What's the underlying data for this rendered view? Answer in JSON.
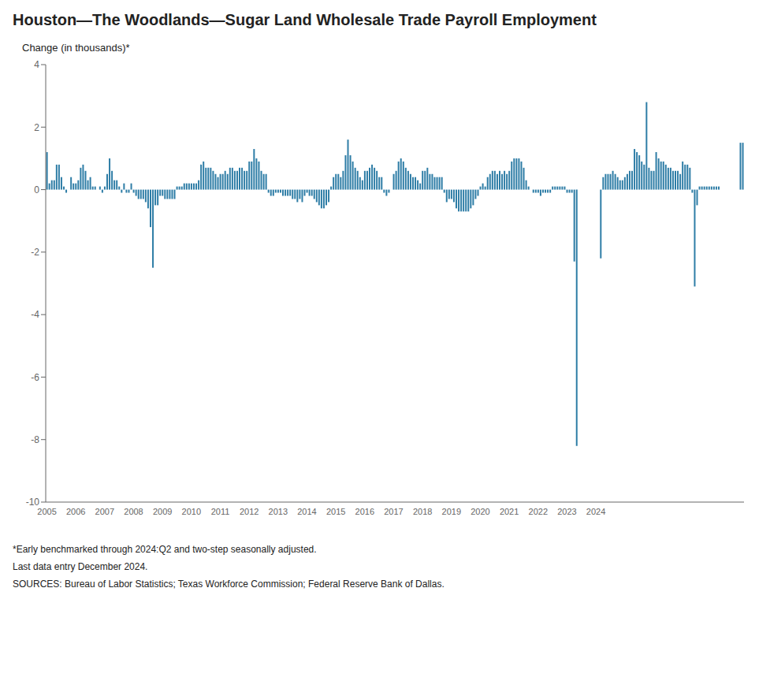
{
  "chart_data": {
    "type": "bar",
    "title": "Houston—The Woodlands—Sugar Land Wholesale Trade Payroll Employment",
    "ylabel": "Change (in thousands)*",
    "annotations": [
      "*Early benchmarked through 2024:Q2  and two-step seasonally adjusted.",
      "Last data entry December 2024.",
      "SOURCES:  Bureau of Labor Statistics;  Texas Workforce Commission;  Federal Reserve Bank of Dallas."
    ],
    "color": "#2e7da6",
    "ylim": [
      -10,
      4
    ],
    "yticks": [
      -10,
      -8,
      -6,
      -4,
      -2,
      0,
      2,
      4
    ],
    "grid": false,
    "categories": [
      "2005",
      null,
      null,
      null,
      null,
      null,
      null,
      null,
      null,
      null,
      null,
      null,
      "2006",
      null,
      null,
      null,
      null,
      null,
      null,
      null,
      null,
      null,
      null,
      null,
      "2007",
      null,
      null,
      null,
      null,
      null,
      null,
      null,
      null,
      null,
      null,
      null,
      "2008",
      null,
      null,
      null,
      null,
      null,
      null,
      null,
      null,
      null,
      null,
      null,
      "2009",
      null,
      null,
      null,
      null,
      null,
      null,
      null,
      null,
      null,
      null,
      null,
      "2010",
      null,
      null,
      null,
      null,
      null,
      null,
      null,
      null,
      null,
      null,
      null,
      "2011",
      null,
      null,
      null,
      null,
      null,
      null,
      null,
      null,
      null,
      null,
      null,
      "2012",
      null,
      null,
      null,
      null,
      null,
      null,
      null,
      null,
      null,
      null,
      null,
      "2013",
      null,
      null,
      null,
      null,
      null,
      null,
      null,
      null,
      null,
      null,
      null,
      "2014",
      null,
      null,
      null,
      null,
      null,
      null,
      null,
      null,
      null,
      null,
      null,
      "2015",
      null,
      null,
      null,
      null,
      null,
      null,
      null,
      null,
      null,
      null,
      null,
      "2016",
      null,
      null,
      null,
      null,
      null,
      null,
      null,
      null,
      null,
      null,
      null,
      "2017",
      null,
      null,
      null,
      null,
      null,
      null,
      null,
      null,
      null,
      null,
      null,
      "2018",
      null,
      null,
      null,
      null,
      null,
      null,
      null,
      null,
      null,
      null,
      null,
      "2019",
      null,
      null,
      null,
      null,
      null,
      null,
      null,
      null,
      null,
      null,
      null,
      "2020",
      null,
      null,
      null,
      null,
      null,
      null,
      null,
      null,
      null,
      null,
      null,
      "2021",
      null,
      null,
      null,
      null,
      null,
      null,
      null,
      null,
      null,
      null,
      null,
      "2022",
      null,
      null,
      null,
      null,
      null,
      null,
      null,
      null,
      null,
      null,
      null,
      "2023",
      null,
      null,
      null,
      null,
      null,
      null,
      null,
      null,
      null,
      null,
      null,
      "2024",
      null,
      null,
      null,
      null,
      null,
      null,
      null,
      null,
      null,
      null,
      null,
      null,
      null,
      null,
      null,
      null,
      null,
      null,
      null,
      null,
      null,
      null,
      null,
      null,
      null,
      null,
      null,
      null,
      null,
      null,
      null,
      null,
      null,
      null,
      null,
      null,
      null,
      null,
      null,
      null,
      null,
      null,
      null,
      null,
      null,
      null,
      null,
      null,
      null,
      null,
      null,
      null,
      null,
      null,
      null,
      null,
      null,
      null,
      null,
      null,
      null
    ],
    "values": [
      1.2,
      0.2,
      0.3,
      0.3,
      0.8,
      0.8,
      0.4,
      0.1,
      -0.1,
      0.0,
      0.4,
      0.2,
      0.2,
      0.3,
      0.7,
      0.8,
      0.6,
      0.3,
      0.4,
      0.1,
      0.1,
      0.0,
      0.1,
      -0.1,
      0.1,
      0.5,
      1.0,
      0.6,
      0.3,
      0.3,
      0.1,
      -0.1,
      0.2,
      -0.1,
      -0.1,
      0.2,
      -0.1,
      -0.2,
      -0.3,
      -0.3,
      -0.3,
      -0.4,
      -0.6,
      -1.2,
      -2.5,
      -0.5,
      -0.5,
      -0.2,
      -0.2,
      -0.3,
      -0.3,
      -0.3,
      -0.3,
      -0.3,
      0.1,
      0.1,
      0.1,
      0.2,
      0.2,
      0.2,
      0.2,
      0.2,
      0.2,
      0.3,
      0.8,
      0.9,
      0.7,
      0.7,
      0.7,
      0.6,
      0.5,
      0.4,
      0.5,
      0.5,
      0.6,
      0.5,
      0.7,
      0.7,
      0.6,
      0.6,
      0.7,
      0.7,
      0.6,
      0.6,
      0.9,
      0.9,
      1.3,
      1.0,
      0.9,
      0.6,
      0.5,
      0.5,
      -0.1,
      -0.2,
      -0.2,
      -0.1,
      -0.1,
      -0.1,
      -0.2,
      -0.2,
      -0.2,
      -0.2,
      -0.3,
      -0.3,
      -0.4,
      -0.3,
      -0.4,
      -0.2,
      -0.1,
      -0.2,
      -0.2,
      -0.3,
      -0.4,
      -0.5,
      -0.6,
      -0.6,
      -0.5,
      -0.4,
      0.1,
      0.4,
      0.5,
      0.5,
      0.4,
      0.6,
      1.1,
      1.6,
      1.1,
      0.9,
      0.7,
      0.6,
      0.4,
      0.3,
      0.6,
      0.6,
      0.7,
      0.8,
      0.7,
      0.6,
      0.4,
      0.4,
      -0.1,
      -0.2,
      -0.1,
      0.0,
      0.5,
      0.6,
      0.9,
      1.0,
      0.9,
      0.7,
      0.6,
      0.5,
      0.4,
      0.4,
      0.3,
      0.2,
      0.6,
      0.6,
      0.7,
      0.5,
      0.5,
      0.4,
      0.4,
      0.4,
      0.4,
      -0.1,
      -0.4,
      -0.3,
      -0.3,
      -0.4,
      -0.6,
      -0.7,
      -0.7,
      -0.7,
      -0.7,
      -0.7,
      -0.6,
      -0.5,
      -0.3,
      -0.2,
      0.1,
      0.2,
      0.1,
      0.4,
      0.5,
      0.6,
      0.6,
      0.5,
      0.6,
      0.5,
      0.6,
      0.5,
      0.6,
      0.9,
      1.0,
      1.0,
      1.0,
      0.9,
      0.7,
      0.3,
      0.1,
      0.0,
      -0.1,
      -0.1,
      -0.1,
      -0.2,
      -0.1,
      -0.1,
      -0.1,
      -0.1,
      0.1,
      0.1,
      0.1,
      0.1,
      0.1,
      0.1,
      -0.1,
      -0.1,
      -0.1,
      -2.3,
      -8.2,
      0.0,
      0.0,
      0.0,
      0.0,
      0.0,
      0.0,
      0.0,
      0.0,
      0.0,
      -2.2,
      0.4,
      0.5,
      0.5,
      0.5,
      0.6,
      0.5,
      0.4,
      0.3,
      0.3,
      0.4,
      0.5,
      0.6,
      0.6,
      1.3,
      1.2,
      1.1,
      0.9,
      0.8,
      2.8,
      0.7,
      0.6,
      0.6,
      1.2,
      1.0,
      0.9,
      0.9,
      0.8,
      0.7,
      0.7,
      0.6,
      0.6,
      0.6,
      0.5,
      0.9,
      0.8,
      0.8,
      0.7,
      -0.1,
      -3.1,
      -0.5,
      0.1,
      0.1,
      0.1,
      0.1,
      0.1,
      0.1,
      0.1,
      0.1,
      0.1,
      0.0,
      0.0,
      0.0,
      0.0,
      0.0,
      0.0,
      0.0,
      0.0,
      1.5,
      1.5
    ]
  }
}
